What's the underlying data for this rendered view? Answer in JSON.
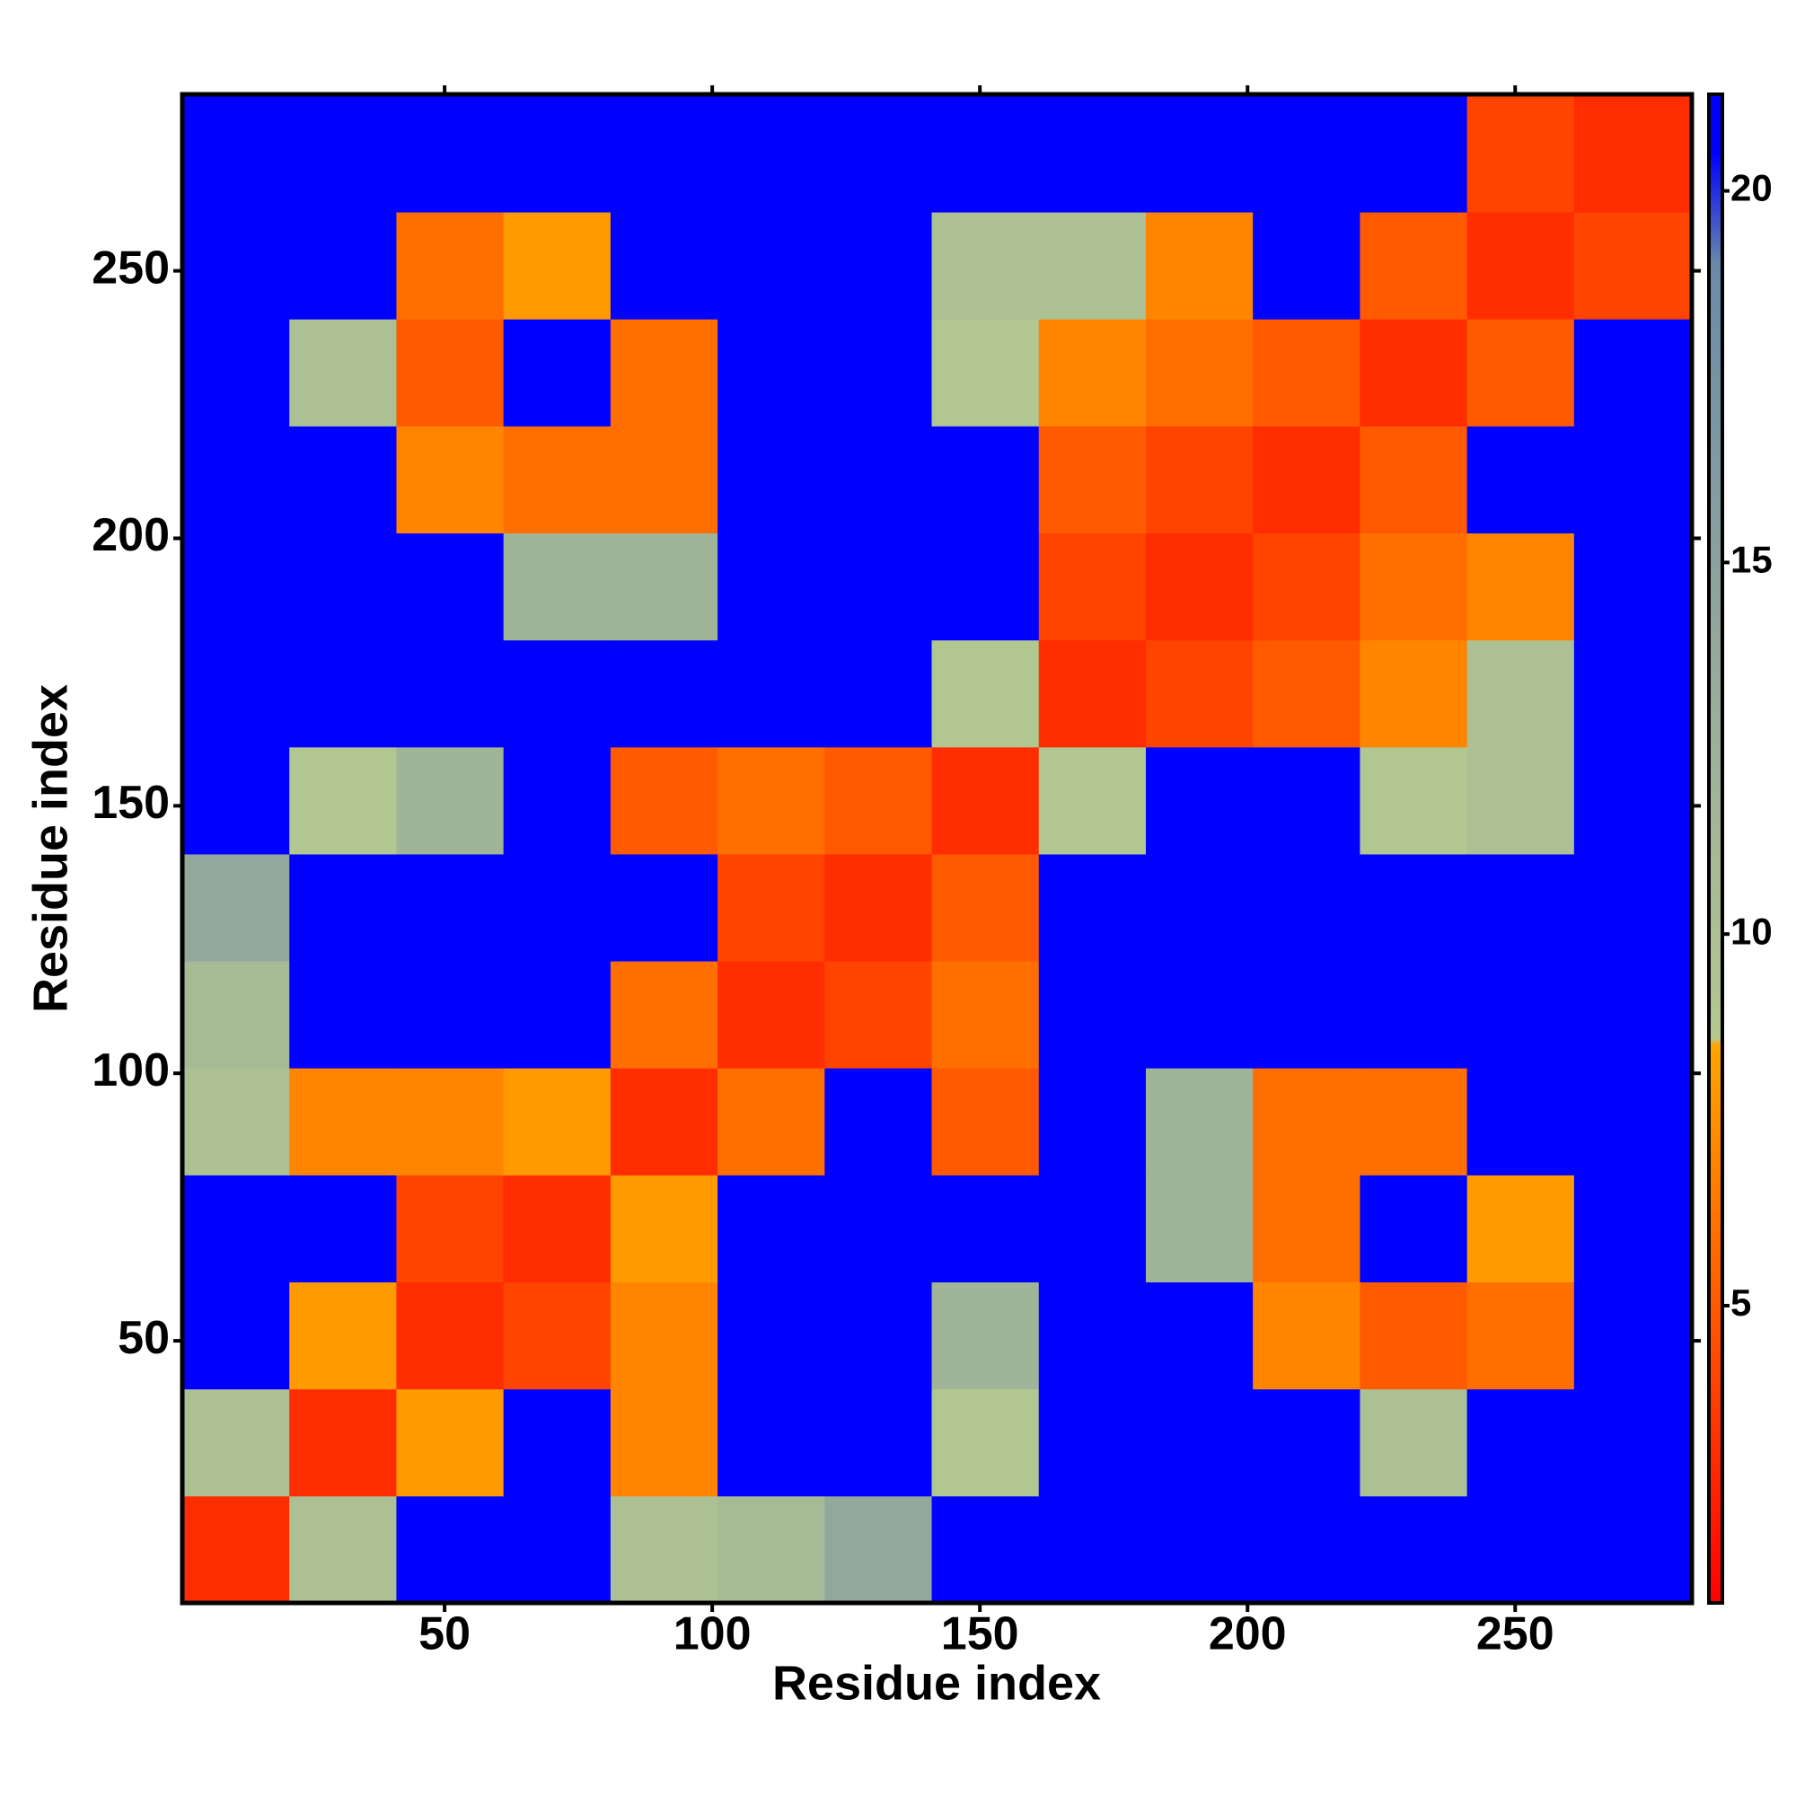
{
  "chart_data": {
    "type": "heatmap",
    "x_label": "Residue index",
    "y_label": "Residue index",
    "x_bins": [
      1,
      21,
      41,
      61,
      81,
      101,
      121,
      141,
      161,
      181,
      201,
      221,
      241,
      261,
      283
    ],
    "y_bins": [
      1,
      21,
      41,
      61,
      81,
      101,
      121,
      141,
      161,
      181,
      201,
      221,
      241,
      261,
      283
    ],
    "z": [
      [
        3,
        10,
        21,
        21,
        10,
        11,
        14,
        21,
        21,
        21,
        21,
        21,
        21,
        21
      ],
      [
        10,
        3,
        8,
        21,
        7,
        21,
        21,
        9,
        21,
        21,
        21,
        10,
        21,
        21
      ],
      [
        21,
        8,
        3,
        4,
        7,
        21,
        21,
        12,
        21,
        21,
        7,
        5,
        6,
        21
      ],
      [
        21,
        21,
        4,
        3,
        8,
        21,
        21,
        21,
        21,
        12,
        6,
        21,
        8,
        21
      ],
      [
        10,
        7,
        7,
        8,
        3,
        6,
        21,
        5,
        21,
        12,
        6,
        6,
        21,
        21
      ],
      [
        11,
        21,
        21,
        21,
        6,
        3,
        4,
        6,
        21,
        21,
        21,
        21,
        21,
        21
      ],
      [
        14,
        21,
        21,
        21,
        21,
        4,
        3,
        5,
        21,
        21,
        21,
        21,
        21,
        21
      ],
      [
        21,
        9,
        12,
        21,
        5,
        6,
        5,
        3,
        9,
        21,
        21,
        9,
        10,
        21
      ],
      [
        21,
        21,
        21,
        21,
        21,
        21,
        21,
        9,
        3,
        4,
        5,
        7,
        10,
        21
      ],
      [
        21,
        21,
        21,
        12,
        12,
        21,
        21,
        21,
        4,
        3,
        4,
        6,
        7,
        21
      ],
      [
        21,
        21,
        7,
        6,
        6,
        21,
        21,
        21,
        5,
        4,
        3,
        5,
        21,
        21
      ],
      [
        21,
        10,
        5,
        21,
        6,
        21,
        21,
        9,
        7,
        6,
        5,
        3,
        5,
        21
      ],
      [
        21,
        21,
        6,
        8,
        21,
        21,
        21,
        10,
        10,
        7,
        21,
        5,
        3,
        4
      ],
      [
        21,
        21,
        21,
        21,
        21,
        21,
        21,
        21,
        21,
        21,
        21,
        21,
        4,
        3
      ]
    ],
    "xlim": [
      1,
      283
    ],
    "ylim": [
      1,
      283
    ],
    "xticks": [
      50,
      100,
      150,
      200,
      250
    ],
    "yticks": [
      50,
      100,
      150,
      200,
      250
    ],
    "colorbar_lim": [
      1,
      21.3
    ],
    "colorbar_ticks": [
      5,
      10,
      15,
      20
    ],
    "colorscale": [
      [
        1,
        "#ff0000"
      ],
      [
        5,
        "#ff5a00"
      ],
      [
        8.5,
        "#ffa500"
      ],
      [
        8.6,
        "#b4c890"
      ],
      [
        13,
        "#9aae9a"
      ],
      [
        19,
        "#6a8aa8"
      ],
      [
        20.5,
        "#0000ff"
      ],
      [
        21.3,
        "#0000ff"
      ]
    ]
  }
}
